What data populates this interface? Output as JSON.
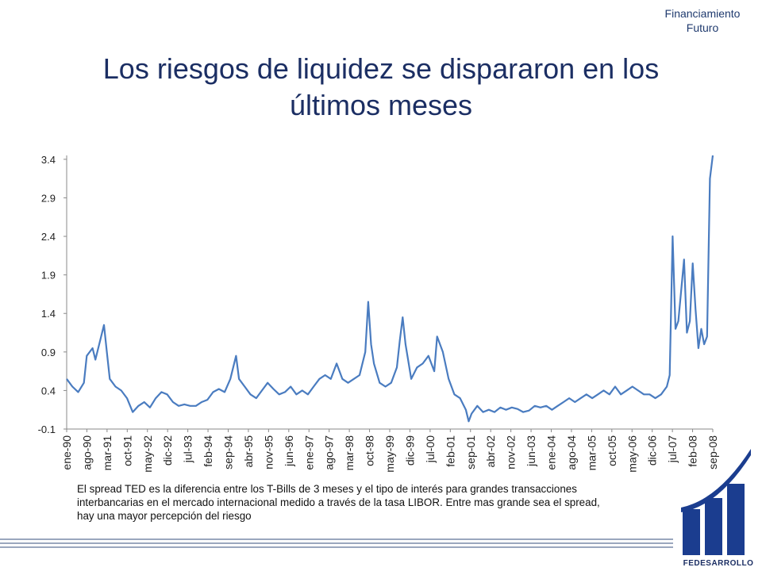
{
  "header": {
    "tag_line1": "Financiamiento",
    "tag_line2": "Futuro"
  },
  "title": {
    "line1": "Los riesgos de liquidez se dispararon en los",
    "line2": "últimos meses"
  },
  "note": "El spread TED es la diferencia entre los T-Bills de 3 meses y el tipo de interés para grandes transacciones interbancarias en el mercado internacional medido a través de la tasa LIBOR. Entre mas grande sea el spread, hay una mayor percepción del riesgo",
  "brand": {
    "name": "FEDESARROLLO"
  },
  "colors": {
    "series": "#4a7cc0",
    "axis": "#8a8a8a",
    "title": "#1b2e63",
    "logo": "#1b3d8f",
    "brand_bar": "#9aa7be"
  },
  "chart_data": {
    "type": "line",
    "title": "",
    "xlabel": "",
    "ylabel": "",
    "ylim": [
      -0.1,
      3.45
    ],
    "yticks": [
      3.4,
      2.9,
      2.4,
      1.9,
      1.4,
      0.9,
      0.4,
      -0.1
    ],
    "ytick_labels": [
      "3.4",
      "2.9",
      "2.4",
      "1.9",
      "1.4",
      "0.9",
      "0.4",
      "-0.1"
    ],
    "xlim": [
      "1990-01",
      "2008-10"
    ],
    "xtick_labels": [
      "ene-90",
      "ago-90",
      "mar-91",
      "oct-91",
      "may-92",
      "dic-92",
      "jul-93",
      "feb-94",
      "sep-94",
      "abr-95",
      "nov-95",
      "jun-96",
      "ene-97",
      "ago-97",
      "mar-98",
      "oct-98",
      "may-99",
      "dic-99",
      "jul-00",
      "feb-01",
      "sep-01",
      "abr-02",
      "nov-02",
      "jun-03",
      "ene-04",
      "ago-04",
      "mar-05",
      "oct-05",
      "may-06",
      "dic-06",
      "jul-07",
      "feb-08",
      "sep-08"
    ],
    "legend": "none",
    "grid": false,
    "series": [
      {
        "points": [
          [
            "1990-01",
            0.55
          ],
          [
            "1990-03",
            0.45
          ],
          [
            "1990-05",
            0.38
          ],
          [
            "1990-07",
            0.5
          ],
          [
            "1990-08",
            0.85
          ],
          [
            "1990-10",
            0.95
          ],
          [
            "1990-11",
            0.8
          ],
          [
            "1991-01",
            1.1
          ],
          [
            "1991-02",
            1.25
          ],
          [
            "1991-03",
            0.9
          ],
          [
            "1991-04",
            0.55
          ],
          [
            "1991-06",
            0.45
          ],
          [
            "1991-08",
            0.4
          ],
          [
            "1991-10",
            0.3
          ],
          [
            "1991-12",
            0.12
          ],
          [
            "1992-02",
            0.2
          ],
          [
            "1992-04",
            0.25
          ],
          [
            "1992-06",
            0.18
          ],
          [
            "1992-08",
            0.3
          ],
          [
            "1992-10",
            0.38
          ],
          [
            "1992-12",
            0.35
          ],
          [
            "1993-02",
            0.25
          ],
          [
            "1993-04",
            0.2
          ],
          [
            "1993-06",
            0.22
          ],
          [
            "1993-08",
            0.2
          ],
          [
            "1993-10",
            0.2
          ],
          [
            "1993-12",
            0.25
          ],
          [
            "1994-02",
            0.28
          ],
          [
            "1994-04",
            0.38
          ],
          [
            "1994-06",
            0.42
          ],
          [
            "1994-08",
            0.38
          ],
          [
            "1994-10",
            0.55
          ],
          [
            "1994-12",
            0.85
          ],
          [
            "1995-01",
            0.55
          ],
          [
            "1995-03",
            0.45
          ],
          [
            "1995-05",
            0.35
          ],
          [
            "1995-07",
            0.3
          ],
          [
            "1995-09",
            0.4
          ],
          [
            "1995-11",
            0.5
          ],
          [
            "1996-01",
            0.42
          ],
          [
            "1996-03",
            0.35
          ],
          [
            "1996-05",
            0.38
          ],
          [
            "1996-07",
            0.45
          ],
          [
            "1996-09",
            0.35
          ],
          [
            "1996-11",
            0.4
          ],
          [
            "1997-01",
            0.35
          ],
          [
            "1997-03",
            0.45
          ],
          [
            "1997-05",
            0.55
          ],
          [
            "1997-07",
            0.6
          ],
          [
            "1997-09",
            0.55
          ],
          [
            "1997-11",
            0.75
          ],
          [
            "1998-01",
            0.55
          ],
          [
            "1998-03",
            0.5
          ],
          [
            "1998-05",
            0.55
          ],
          [
            "1998-07",
            0.6
          ],
          [
            "1998-09",
            0.9
          ],
          [
            "1998-10",
            1.55
          ],
          [
            "1998-11",
            1.0
          ],
          [
            "1998-12",
            0.75
          ],
          [
            "1999-02",
            0.5
          ],
          [
            "1999-04",
            0.45
          ],
          [
            "1999-06",
            0.5
          ],
          [
            "1999-08",
            0.7
          ],
          [
            "1999-09",
            1.05
          ],
          [
            "1999-10",
            1.35
          ],
          [
            "1999-11",
            1.0
          ],
          [
            "2000-01",
            0.55
          ],
          [
            "2000-03",
            0.7
          ],
          [
            "2000-05",
            0.75
          ],
          [
            "2000-07",
            0.85
          ],
          [
            "2000-09",
            0.65
          ],
          [
            "2000-10",
            1.1
          ],
          [
            "2000-12",
            0.9
          ],
          [
            "2001-02",
            0.55
          ],
          [
            "2001-04",
            0.35
          ],
          [
            "2001-06",
            0.3
          ],
          [
            "2001-08",
            0.15
          ],
          [
            "2001-09",
            0.0
          ],
          [
            "2001-10",
            0.1
          ],
          [
            "2001-12",
            0.2
          ],
          [
            "2002-02",
            0.12
          ],
          [
            "2002-04",
            0.15
          ],
          [
            "2002-06",
            0.12
          ],
          [
            "2002-08",
            0.18
          ],
          [
            "2002-10",
            0.15
          ],
          [
            "2002-12",
            0.18
          ],
          [
            "2003-02",
            0.16
          ],
          [
            "2003-04",
            0.12
          ],
          [
            "2003-06",
            0.14
          ],
          [
            "2003-08",
            0.2
          ],
          [
            "2003-10",
            0.18
          ],
          [
            "2003-12",
            0.2
          ],
          [
            "2004-02",
            0.15
          ],
          [
            "2004-04",
            0.2
          ],
          [
            "2004-06",
            0.25
          ],
          [
            "2004-08",
            0.3
          ],
          [
            "2004-10",
            0.25
          ],
          [
            "2004-12",
            0.3
          ],
          [
            "2005-02",
            0.35
          ],
          [
            "2005-04",
            0.3
          ],
          [
            "2005-06",
            0.35
          ],
          [
            "2005-08",
            0.4
          ],
          [
            "2005-10",
            0.35
          ],
          [
            "2005-12",
            0.45
          ],
          [
            "2006-02",
            0.35
          ],
          [
            "2006-04",
            0.4
          ],
          [
            "2006-06",
            0.45
          ],
          [
            "2006-08",
            0.4
          ],
          [
            "2006-10",
            0.35
          ],
          [
            "2006-12",
            0.35
          ],
          [
            "2007-02",
            0.3
          ],
          [
            "2007-04",
            0.35
          ],
          [
            "2007-06",
            0.45
          ],
          [
            "2007-07",
            0.6
          ],
          [
            "2007-08",
            2.4
          ],
          [
            "2007-09",
            1.2
          ],
          [
            "2007-10",
            1.3
          ],
          [
            "2007-11",
            1.7
          ],
          [
            "2007-12",
            2.1
          ],
          [
            "2008-01",
            1.15
          ],
          [
            "2008-02",
            1.3
          ],
          [
            "2008-03",
            2.05
          ],
          [
            "2008-04",
            1.45
          ],
          [
            "2008-05",
            0.95
          ],
          [
            "2008-06",
            1.2
          ],
          [
            "2008-07",
            1.0
          ],
          [
            "2008-08",
            1.1
          ],
          [
            "2008-09",
            3.15
          ],
          [
            "2008-10",
            3.45
          ]
        ]
      }
    ]
  }
}
